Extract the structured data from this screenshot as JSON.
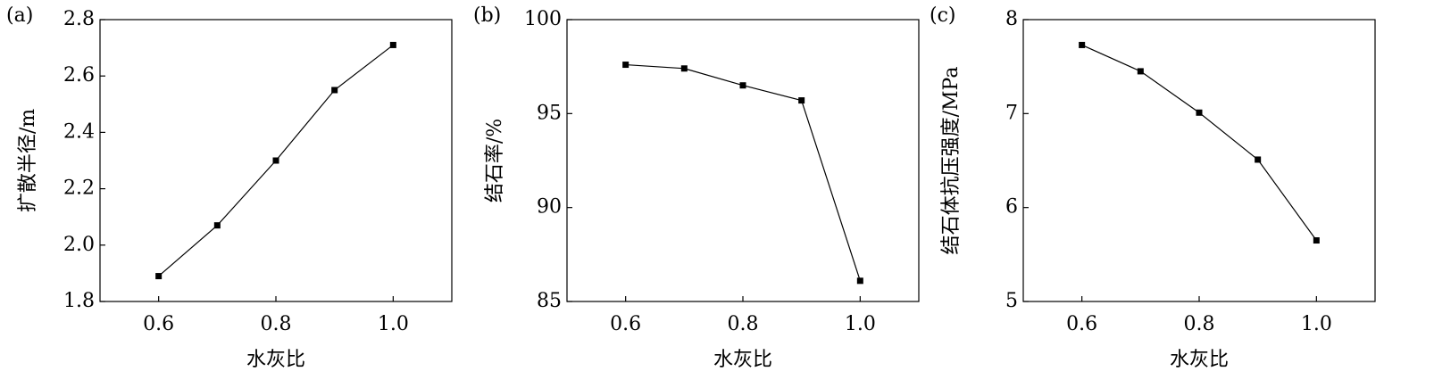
{
  "chart_data": [
    {
      "type": "line",
      "label": "(a)",
      "xlabel": "水灰比",
      "ylabel": "扩散半径/m",
      "x": [
        0.6,
        0.7,
        0.8,
        0.9,
        1.0
      ],
      "color": "#000000",
      "series": [
        {
          "values": [
            1.89,
            2.07,
            2.3,
            2.55,
            2.71
          ]
        }
      ],
      "xlim": [
        0.5,
        1.1
      ],
      "xticks": [
        0.6,
        0.8,
        {
          "value": 1,
          "label": "1.0"
        }
      ],
      "ylim": [
        1.8,
        2.8
      ],
      "yticks": [
        1.8,
        {
          "value": 2,
          "label": "2.0"
        },
        2.2,
        2.4,
        2.6,
        2.8
      ]
    },
    {
      "type": "line",
      "label": "(b)",
      "xlabel": "水灰比",
      "ylabel": "结石率/%",
      "x": [
        0.6,
        0.7,
        0.8,
        0.9,
        1.0
      ],
      "color": "#000000",
      "series": [
        {
          "values": [
            97.6,
            97.4,
            96.5,
            95.7,
            86.1
          ]
        }
      ],
      "xlim": [
        0.5,
        1.1
      ],
      "xticks": [
        0.6,
        0.8,
        {
          "value": 1,
          "label": "1.0"
        }
      ],
      "ylim": [
        85,
        100
      ],
      "yticks": [
        85,
        90,
        95,
        100
      ]
    },
    {
      "type": "line",
      "label": "(c)",
      "xlabel": "水灰比",
      "ylabel": "结石体抗压强度/MPa",
      "x": [
        0.6,
        0.7,
        0.8,
        0.9,
        1.0
      ],
      "color": "#000000",
      "series": [
        {
          "values": [
            7.73,
            7.45,
            7.01,
            6.51,
            5.65
          ]
        }
      ],
      "xlim": [
        0.5,
        1.1
      ],
      "xticks": [
        0.6,
        0.8,
        {
          "value": 1,
          "label": "1.0"
        }
      ],
      "ylim": [
        5,
        8
      ],
      "yticks": [
        5,
        6,
        7,
        8
      ]
    }
  ]
}
